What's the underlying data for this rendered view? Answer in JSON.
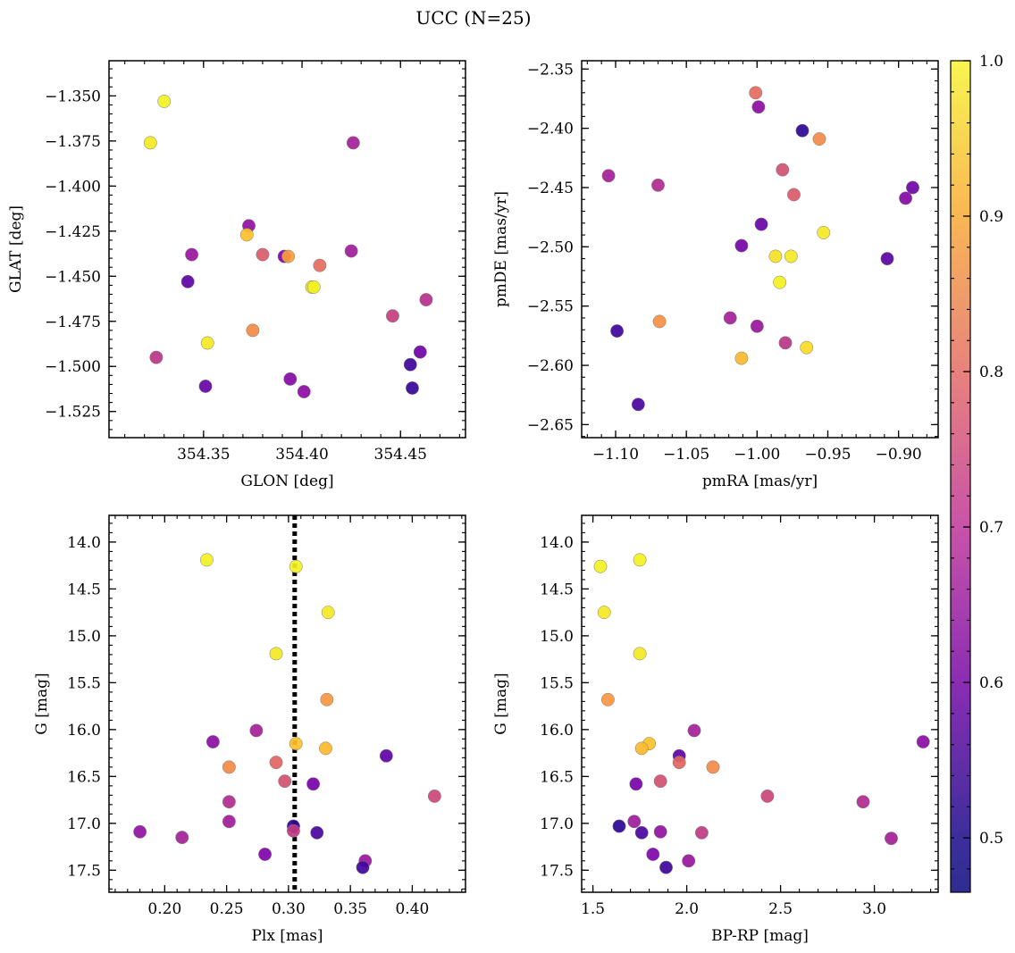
{
  "figure": {
    "title": "UCC (N=25)"
  },
  "colorbar": {
    "range": [
      0.465,
      1.0
    ],
    "ticks": [
      0.5,
      0.6,
      0.7,
      0.8,
      0.9,
      1.0
    ],
    "tick_labels": [
      "0.5",
      "0.6",
      "0.7",
      "0.8",
      "0.9",
      "1.0"
    ],
    "colormap": "plasma"
  },
  "chart_data": [
    {
      "type": "scatter",
      "xlabel": "GLON [deg]",
      "ylabel": "GLAT [deg]",
      "xlim": [
        354.302,
        354.483
      ],
      "ylim": [
        -1.5395,
        -1.3305
      ],
      "xticks": [
        354.35,
        354.4,
        354.45
      ],
      "xtick_labels": [
        "354.35",
        "354.40",
        "354.45"
      ],
      "yticks": [
        -1.35,
        -1.375,
        -1.4,
        -1.425,
        -1.45,
        -1.475,
        -1.5,
        -1.525
      ],
      "ytick_labels": [
        "−1.350",
        "−1.375",
        "−1.400",
        "−1.425",
        "−1.450",
        "−1.475",
        "−1.500",
        "−1.525"
      ],
      "points": [
        {
          "x": 354.33,
          "y": -1.353,
          "c": 0.99
        },
        {
          "x": 354.323,
          "y": -1.376,
          "c": 0.98
        },
        {
          "x": 354.426,
          "y": -1.376,
          "c": 0.66
        },
        {
          "x": 354.373,
          "y": -1.422,
          "c": 0.63
        },
        {
          "x": 354.372,
          "y": -1.427,
          "c": 0.93
        },
        {
          "x": 354.344,
          "y": -1.438,
          "c": 0.64
        },
        {
          "x": 354.38,
          "y": -1.438,
          "c": 0.77
        },
        {
          "x": 354.391,
          "y": -1.439,
          "c": 0.6
        },
        {
          "x": 354.393,
          "y": -1.439,
          "c": 0.88
        },
        {
          "x": 354.409,
          "y": -1.444,
          "c": 0.8
        },
        {
          "x": 354.425,
          "y": -1.436,
          "c": 0.65
        },
        {
          "x": 354.342,
          "y": -1.453,
          "c": 0.56
        },
        {
          "x": 354.405,
          "y": -1.456,
          "c": 0.97
        },
        {
          "x": 354.406,
          "y": -1.456,
          "c": 0.99
        },
        {
          "x": 354.463,
          "y": -1.463,
          "c": 0.69
        },
        {
          "x": 354.446,
          "y": -1.472,
          "c": 0.72
        },
        {
          "x": 354.375,
          "y": -1.48,
          "c": 0.85
        },
        {
          "x": 354.352,
          "y": -1.487,
          "c": 0.98
        },
        {
          "x": 354.46,
          "y": -1.492,
          "c": 0.58
        },
        {
          "x": 354.326,
          "y": -1.495,
          "c": 0.7
        },
        {
          "x": 354.455,
          "y": -1.499,
          "c": 0.52
        },
        {
          "x": 354.394,
          "y": -1.507,
          "c": 0.61
        },
        {
          "x": 354.351,
          "y": -1.511,
          "c": 0.57
        },
        {
          "x": 354.456,
          "y": -1.512,
          "c": 0.51
        },
        {
          "x": 354.401,
          "y": -1.514,
          "c": 0.62
        }
      ]
    },
    {
      "type": "scatter",
      "xlabel": "pmRA [mas/yr]",
      "ylabel": "pmDE [mas/yr]",
      "xlim": [
        -1.124,
        -0.872
      ],
      "ylim": [
        -2.661,
        -2.343
      ],
      "xticks": [
        -1.1,
        -1.05,
        -1.0,
        -0.95,
        -0.9
      ],
      "xtick_labels": [
        "−1.10",
        "−1.05",
        "−1.00",
        "−0.95",
        "−0.90"
      ],
      "yticks": [
        -2.35,
        -2.4,
        -2.45,
        -2.5,
        -2.55,
        -2.6,
        -2.65
      ],
      "ytick_labels": [
        "−2.35",
        "−2.40",
        "−2.45",
        "−2.50",
        "−2.55",
        "−2.60",
        "−2.65"
      ],
      "points": [
        {
          "x": -1.001,
          "y": -2.37,
          "c": 0.8
        },
        {
          "x": -0.999,
          "y": -2.382,
          "c": 0.62
        },
        {
          "x": -0.968,
          "y": -2.402,
          "c": 0.5
        },
        {
          "x": -0.956,
          "y": -2.409,
          "c": 0.85
        },
        {
          "x": -1.105,
          "y": -2.44,
          "c": 0.66
        },
        {
          "x": -1.07,
          "y": -2.448,
          "c": 0.68
        },
        {
          "x": -0.982,
          "y": -2.435,
          "c": 0.75
        },
        {
          "x": -0.974,
          "y": -2.456,
          "c": 0.77
        },
        {
          "x": -0.89,
          "y": -2.45,
          "c": 0.58
        },
        {
          "x": -0.895,
          "y": -2.459,
          "c": 0.61
        },
        {
          "x": -0.997,
          "y": -2.481,
          "c": 0.57
        },
        {
          "x": -0.953,
          "y": -2.488,
          "c": 0.98
        },
        {
          "x": -1.011,
          "y": -2.499,
          "c": 0.59
        },
        {
          "x": -0.987,
          "y": -2.508,
          "c": 0.97
        },
        {
          "x": -0.976,
          "y": -2.508,
          "c": 0.98
        },
        {
          "x": -0.908,
          "y": -2.51,
          "c": 0.55
        },
        {
          "x": -0.984,
          "y": -2.53,
          "c": 0.99
        },
        {
          "x": -1.019,
          "y": -2.56,
          "c": 0.66
        },
        {
          "x": -1.069,
          "y": -2.563,
          "c": 0.86
        },
        {
          "x": -1.0,
          "y": -2.567,
          "c": 0.64
        },
        {
          "x": -1.099,
          "y": -2.571,
          "c": 0.52
        },
        {
          "x": -0.98,
          "y": -2.581,
          "c": 0.7
        },
        {
          "x": -0.965,
          "y": -2.585,
          "c": 0.96
        },
        {
          "x": -1.011,
          "y": -2.594,
          "c": 0.92
        },
        {
          "x": -1.084,
          "y": -2.633,
          "c": 0.53
        }
      ]
    },
    {
      "type": "scatter",
      "xlabel": "Plx [mas]",
      "ylabel": "G [mag]",
      "xlim": [
        0.155,
        0.443
      ],
      "ylim": [
        17.735,
        13.715
      ],
      "xticks": [
        0.2,
        0.25,
        0.3,
        0.35,
        0.4
      ],
      "xtick_labels": [
        "0.20",
        "0.25",
        "0.30",
        "0.35",
        "0.40"
      ],
      "yticks": [
        14.0,
        14.5,
        15.0,
        15.5,
        16.0,
        16.5,
        17.0,
        17.5
      ],
      "ytick_labels": [
        "14.0",
        "14.5",
        "15.0",
        "15.5",
        "16.0",
        "16.5",
        "17.0",
        "17.5"
      ],
      "vline_x": 0.305,
      "points": [
        {
          "x": 0.234,
          "y": 14.19,
          "c": 0.99
        },
        {
          "x": 0.306,
          "y": 14.26,
          "c": 0.99
        },
        {
          "x": 0.332,
          "y": 14.75,
          "c": 0.98
        },
        {
          "x": 0.29,
          "y": 15.19,
          "c": 0.98
        },
        {
          "x": 0.331,
          "y": 15.68,
          "c": 0.87
        },
        {
          "x": 0.274,
          "y": 16.01,
          "c": 0.66
        },
        {
          "x": 0.239,
          "y": 16.13,
          "c": 0.62
        },
        {
          "x": 0.306,
          "y": 16.15,
          "c": 0.93
        },
        {
          "x": 0.33,
          "y": 16.2,
          "c": 0.92
        },
        {
          "x": 0.379,
          "y": 16.28,
          "c": 0.56
        },
        {
          "x": 0.29,
          "y": 16.35,
          "c": 0.79
        },
        {
          "x": 0.252,
          "y": 16.4,
          "c": 0.85
        },
        {
          "x": 0.297,
          "y": 16.55,
          "c": 0.75
        },
        {
          "x": 0.32,
          "y": 16.58,
          "c": 0.59
        },
        {
          "x": 0.418,
          "y": 16.71,
          "c": 0.73
        },
        {
          "x": 0.252,
          "y": 16.77,
          "c": 0.68
        },
        {
          "x": 0.252,
          "y": 16.98,
          "c": 0.65
        },
        {
          "x": 0.304,
          "y": 17.03,
          "c": 0.5
        },
        {
          "x": 0.304,
          "y": 17.08,
          "c": 0.71
        },
        {
          "x": 0.18,
          "y": 17.09,
          "c": 0.63
        },
        {
          "x": 0.323,
          "y": 17.1,
          "c": 0.53
        },
        {
          "x": 0.214,
          "y": 17.15,
          "c": 0.66
        },
        {
          "x": 0.281,
          "y": 17.33,
          "c": 0.6
        },
        {
          "x": 0.362,
          "y": 17.4,
          "c": 0.64
        },
        {
          "x": 0.36,
          "y": 17.47,
          "c": 0.52
        }
      ]
    },
    {
      "type": "scatter",
      "xlabel": "BP-RP [mag]",
      "ylabel": "G [mag]",
      "xlim": [
        1.44,
        3.34
      ],
      "ylim": [
        17.735,
        13.715
      ],
      "xticks": [
        1.5,
        2.0,
        2.5,
        3.0
      ],
      "xtick_labels": [
        "1.5",
        "2.0",
        "2.5",
        "3.0"
      ],
      "yticks": [
        14.0,
        14.5,
        15.0,
        15.5,
        16.0,
        16.5,
        17.0,
        17.5
      ],
      "ytick_labels": [
        "14.0",
        "14.5",
        "15.0",
        "15.5",
        "16.0",
        "16.5",
        "17.0",
        "17.5"
      ],
      "points": [
        {
          "x": 1.54,
          "y": 14.26,
          "c": 0.99
        },
        {
          "x": 1.75,
          "y": 14.19,
          "c": 0.99
        },
        {
          "x": 1.56,
          "y": 14.75,
          "c": 0.98
        },
        {
          "x": 1.75,
          "y": 15.19,
          "c": 0.98
        },
        {
          "x": 1.58,
          "y": 15.68,
          "c": 0.87
        },
        {
          "x": 2.04,
          "y": 16.01,
          "c": 0.66
        },
        {
          "x": 3.26,
          "y": 16.13,
          "c": 0.62
        },
        {
          "x": 1.8,
          "y": 16.15,
          "c": 0.93
        },
        {
          "x": 1.76,
          "y": 16.2,
          "c": 0.92
        },
        {
          "x": 1.96,
          "y": 16.28,
          "c": 0.56
        },
        {
          "x": 1.96,
          "y": 16.35,
          "c": 0.79
        },
        {
          "x": 2.14,
          "y": 16.4,
          "c": 0.85
        },
        {
          "x": 1.86,
          "y": 16.55,
          "c": 0.75
        },
        {
          "x": 1.73,
          "y": 16.58,
          "c": 0.59
        },
        {
          "x": 2.43,
          "y": 16.71,
          "c": 0.73
        },
        {
          "x": 2.94,
          "y": 16.77,
          "c": 0.68
        },
        {
          "x": 1.72,
          "y": 16.98,
          "c": 0.65
        },
        {
          "x": 1.64,
          "y": 17.03,
          "c": 0.5
        },
        {
          "x": 2.08,
          "y": 17.1,
          "c": 0.71
        },
        {
          "x": 1.86,
          "y": 17.09,
          "c": 0.63
        },
        {
          "x": 1.76,
          "y": 17.1,
          "c": 0.53
        },
        {
          "x": 3.09,
          "y": 17.16,
          "c": 0.66
        },
        {
          "x": 1.82,
          "y": 17.33,
          "c": 0.6
        },
        {
          "x": 2.01,
          "y": 17.4,
          "c": 0.64
        },
        {
          "x": 1.89,
          "y": 17.47,
          "c": 0.52
        }
      ]
    }
  ]
}
